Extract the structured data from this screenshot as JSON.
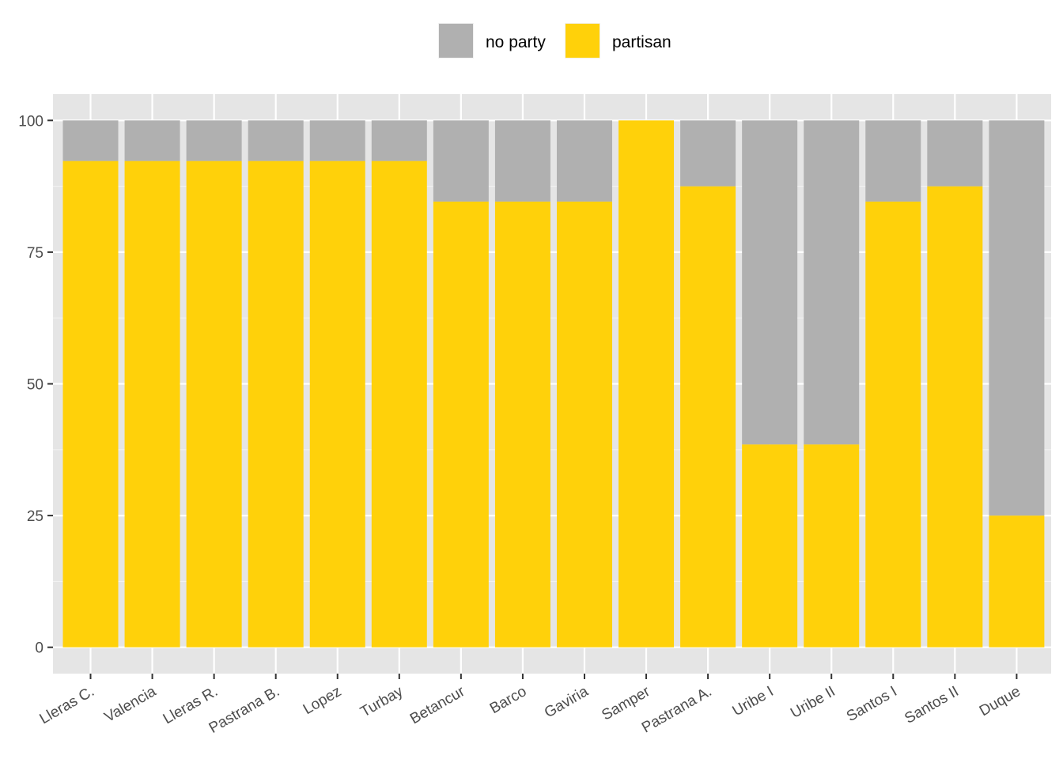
{
  "chart_data": {
    "type": "bar",
    "stacked": true,
    "categories": [
      "Lleras C.",
      "Valencia",
      "Lleras R.",
      "Pastrana B.",
      "Lopez",
      "Turbay",
      "Betancur",
      "Barco",
      "Gaviria",
      "Samper",
      "Pastrana A.",
      "Uribe I",
      "Uribe II",
      "Santos I",
      "Santos II",
      "Duque"
    ],
    "series": [
      {
        "name": "partisan",
        "color": "#FFD10A",
        "values": [
          92.3,
          92.3,
          92.3,
          92.3,
          92.3,
          92.3,
          84.6,
          84.6,
          84.6,
          100,
          87.5,
          38.5,
          38.5,
          84.6,
          87.5,
          25
        ]
      },
      {
        "name": "no party",
        "color": "#B0B0B0",
        "values": [
          7.7,
          7.7,
          7.7,
          7.7,
          7.7,
          7.7,
          15.4,
          15.4,
          15.4,
          0,
          12.5,
          61.5,
          61.5,
          15.4,
          12.5,
          75
        ]
      }
    ],
    "legend_order": [
      "no party",
      "partisan"
    ],
    "legend_position": "top",
    "title": "",
    "xlabel": "",
    "ylabel": "",
    "ylim": [
      0,
      100
    ],
    "yticks": [
      0,
      25,
      50,
      75,
      100
    ],
    "grid": true,
    "panel_background": "#E5E5E5"
  }
}
